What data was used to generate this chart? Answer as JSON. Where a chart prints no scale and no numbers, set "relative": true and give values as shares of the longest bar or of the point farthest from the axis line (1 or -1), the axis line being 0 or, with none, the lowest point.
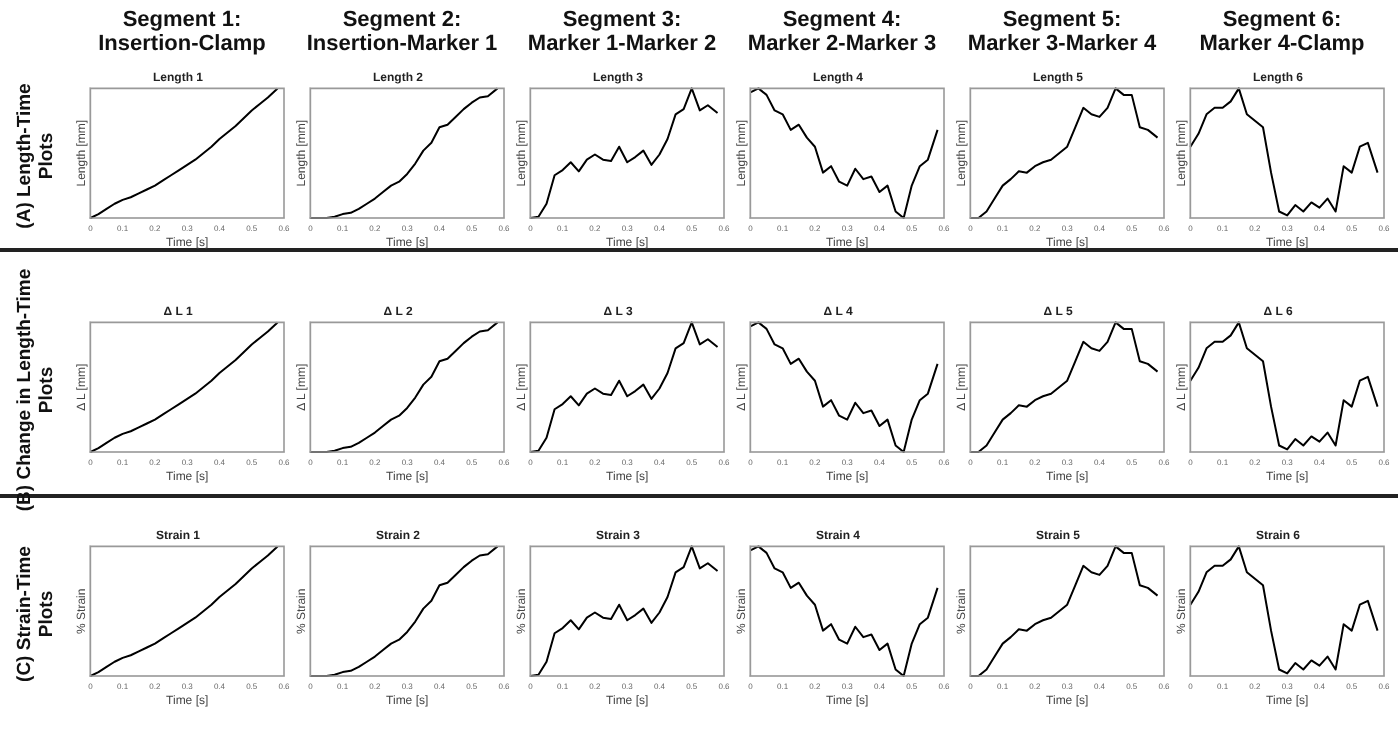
{
  "chart_data": [
    {
      "type": "line",
      "subtitle": "Segment 1:\nInsertion-Clamp",
      "annotations": [
        "(A) Length-Time\nPlots"
      ],
      "title": "Length 1",
      "xlabel": "Time [s]",
      "ylabel": "Length [mm]",
      "relative": true,
      "xlim": [
        0,
        0.6
      ],
      "xticks": [
        0,
        0.1,
        0.2,
        0.3,
        0.4,
        0.5,
        0.6
      ],
      "series": [
        {
          "color": "#000000",
          "x": [
            0,
            0.025,
            0.05,
            0.075,
            0.1,
            0.125,
            0.15,
            0.175,
            0.2,
            0.225,
            0.25,
            0.275,
            0.3,
            0.325,
            0.35,
            0.375,
            0.4,
            0.425,
            0.45,
            0.475,
            0.5,
            0.525,
            0.55,
            0.58
          ],
          "values": [
            0,
            0.03,
            0.07,
            0.11,
            0.14,
            0.16,
            0.19,
            0.22,
            0.25,
            0.29,
            0.33,
            0.37,
            0.41,
            0.45,
            0.5,
            0.55,
            0.61,
            0.66,
            0.71,
            0.77,
            0.83,
            0.88,
            0.93,
            1
          ]
        }
      ]
    },
    {
      "type": "line",
      "subtitle": "Segment 2:\nInsertion-Marker 1",
      "title": "Length 2",
      "xlabel": "Time [s]",
      "ylabel": "Length [mm]",
      "relative": true,
      "xlim": [
        0,
        0.6
      ],
      "xticks": [
        0,
        0.1,
        0.2,
        0.3,
        0.4,
        0.5,
        0.6
      ],
      "series": [
        {
          "color": "#000000",
          "x": [
            0,
            0.025,
            0.05,
            0.075,
            0.1,
            0.125,
            0.15,
            0.175,
            0.2,
            0.225,
            0.25,
            0.275,
            0.3,
            0.325,
            0.35,
            0.375,
            0.4,
            0.425,
            0.45,
            0.475,
            0.5,
            0.525,
            0.55,
            0.58
          ],
          "values": [
            0,
            0,
            0,
            0.01,
            0.03,
            0.04,
            0.07,
            0.11,
            0.15,
            0.2,
            0.25,
            0.28,
            0.34,
            0.42,
            0.52,
            0.58,
            0.7,
            0.72,
            0.78,
            0.84,
            0.89,
            0.93,
            0.94,
            1
          ]
        }
      ]
    },
    {
      "type": "line",
      "subtitle": "Segment 3:\nMarker 1-Marker 2",
      "title": "Length 3",
      "xlabel": "Time [s]",
      "ylabel": "Length [mm]",
      "relative": true,
      "xlim": [
        0,
        0.6
      ],
      "xticks": [
        0,
        0.1,
        0.2,
        0.3,
        0.4,
        0.5,
        0.6
      ],
      "series": [
        {
          "color": "#000000",
          "x": [
            0,
            0.025,
            0.05,
            0.075,
            0.1,
            0.125,
            0.15,
            0.175,
            0.2,
            0.225,
            0.25,
            0.275,
            0.3,
            0.325,
            0.35,
            0.375,
            0.4,
            0.425,
            0.45,
            0.475,
            0.5,
            0.525,
            0.55,
            0.58
          ],
          "values": [
            0,
            0.01,
            0.11,
            0.33,
            0.37,
            0.43,
            0.36,
            0.45,
            0.49,
            0.45,
            0.44,
            0.55,
            0.43,
            0.47,
            0.52,
            0.41,
            0.49,
            0.61,
            0.8,
            0.84,
            1,
            0.83,
            0.87,
            0.81
          ]
        }
      ]
    },
    {
      "type": "line",
      "subtitle": "Segment 4:\nMarker 2-Marker 3",
      "title": "Length 4",
      "xlabel": "Time [s]",
      "ylabel": "Length [mm]",
      "relative": true,
      "xlim": [
        0,
        0.6
      ],
      "xticks": [
        0,
        0.1,
        0.2,
        0.3,
        0.4,
        0.5,
        0.6
      ],
      "series": [
        {
          "color": "#000000",
          "x": [
            0,
            0.025,
            0.05,
            0.075,
            0.1,
            0.125,
            0.15,
            0.175,
            0.2,
            0.225,
            0.25,
            0.275,
            0.3,
            0.325,
            0.35,
            0.375,
            0.4,
            0.425,
            0.45,
            0.475,
            0.5,
            0.525,
            0.55,
            0.58
          ],
          "values": [
            0.97,
            1,
            0.95,
            0.83,
            0.8,
            0.68,
            0.72,
            0.62,
            0.55,
            0.35,
            0.4,
            0.28,
            0.25,
            0.38,
            0.3,
            0.32,
            0.2,
            0.25,
            0.05,
            0,
            0.25,
            0.4,
            0.45,
            0.68
          ]
        }
      ]
    },
    {
      "type": "line",
      "subtitle": "Segment 5:\nMarker 3-Marker 4",
      "title": "Length 5",
      "xlabel": "Time [s]",
      "ylabel": "Length [mm]",
      "relative": true,
      "xlim": [
        0,
        0.6
      ],
      "xticks": [
        0,
        0.1,
        0.2,
        0.3,
        0.4,
        0.5,
        0.6
      ],
      "series": [
        {
          "color": "#000000",
          "x": [
            0,
            0.025,
            0.05,
            0.075,
            0.1,
            0.125,
            0.15,
            0.175,
            0.2,
            0.225,
            0.25,
            0.275,
            0.3,
            0.325,
            0.35,
            0.375,
            0.4,
            0.425,
            0.45,
            0.475,
            0.5,
            0.525,
            0.55,
            0.58
          ],
          "values": [
            0,
            0,
            0.05,
            0.15,
            0.25,
            0.3,
            0.36,
            0.35,
            0.4,
            0.43,
            0.45,
            0.5,
            0.55,
            0.7,
            0.85,
            0.8,
            0.78,
            0.85,
            1,
            0.95,
            0.95,
            0.7,
            0.68,
            0.62
          ]
        }
      ]
    },
    {
      "type": "line",
      "subtitle": "Segment 6:\nMarker 4-Clamp",
      "title": "Length 6",
      "xlabel": "Time [s]",
      "ylabel": "Length [mm]",
      "relative": true,
      "xlim": [
        0,
        0.6
      ],
      "xticks": [
        0,
        0.1,
        0.2,
        0.3,
        0.4,
        0.5,
        0.6
      ],
      "series": [
        {
          "color": "#000000",
          "x": [
            0,
            0.025,
            0.05,
            0.075,
            0.1,
            0.125,
            0.15,
            0.175,
            0.2,
            0.225,
            0.25,
            0.275,
            0.3,
            0.325,
            0.35,
            0.375,
            0.4,
            0.425,
            0.45,
            0.475,
            0.5,
            0.525,
            0.55,
            0.58
          ],
          "values": [
            0.55,
            0.65,
            0.8,
            0.85,
            0.85,
            0.9,
            1,
            0.8,
            0.75,
            0.7,
            0.35,
            0.05,
            0.02,
            0.1,
            0.05,
            0.12,
            0.08,
            0.15,
            0.05,
            0.4,
            0.35,
            0.55,
            0.58,
            0.35
          ]
        }
      ]
    },
    {
      "type": "line",
      "annotations": [
        "(B) Change in Length-Time\nPlots"
      ],
      "title": "Δ L 1",
      "xlabel": "Time [s]",
      "ylabel": "Δ L [mm]",
      "relative": true,
      "xlim": [
        0,
        0.6
      ],
      "xticks": [
        0,
        0.1,
        0.2,
        0.3,
        0.4,
        0.5,
        0.6
      ],
      "series": [
        {
          "color": "#000000",
          "x": [
            0,
            0.025,
            0.05,
            0.075,
            0.1,
            0.125,
            0.15,
            0.175,
            0.2,
            0.225,
            0.25,
            0.275,
            0.3,
            0.325,
            0.35,
            0.375,
            0.4,
            0.425,
            0.45,
            0.475,
            0.5,
            0.525,
            0.55,
            0.58
          ],
          "values": [
            0,
            0.03,
            0.07,
            0.11,
            0.14,
            0.16,
            0.19,
            0.22,
            0.25,
            0.29,
            0.33,
            0.37,
            0.41,
            0.45,
            0.5,
            0.55,
            0.61,
            0.66,
            0.71,
            0.77,
            0.83,
            0.88,
            0.93,
            1
          ]
        }
      ]
    },
    {
      "type": "line",
      "title": "Δ L 2",
      "xlabel": "Time [s]",
      "ylabel": "Δ L [mm]",
      "relative": true,
      "xlim": [
        0,
        0.6
      ],
      "xticks": [
        0,
        0.1,
        0.2,
        0.3,
        0.4,
        0.5,
        0.6
      ],
      "series": [
        {
          "color": "#000000",
          "x": [
            0,
            0.025,
            0.05,
            0.075,
            0.1,
            0.125,
            0.15,
            0.175,
            0.2,
            0.225,
            0.25,
            0.275,
            0.3,
            0.325,
            0.35,
            0.375,
            0.4,
            0.425,
            0.45,
            0.475,
            0.5,
            0.525,
            0.55,
            0.58
          ],
          "values": [
            0,
            0,
            0,
            0.01,
            0.03,
            0.04,
            0.07,
            0.11,
            0.15,
            0.2,
            0.25,
            0.28,
            0.34,
            0.42,
            0.52,
            0.58,
            0.7,
            0.72,
            0.78,
            0.84,
            0.89,
            0.93,
            0.94,
            1
          ]
        }
      ]
    },
    {
      "type": "line",
      "title": "Δ L 3",
      "xlabel": "Time [s]",
      "ylabel": "Δ L [mm]",
      "relative": true,
      "xlim": [
        0,
        0.6
      ],
      "xticks": [
        0,
        0.1,
        0.2,
        0.3,
        0.4,
        0.5,
        0.6
      ],
      "series": [
        {
          "color": "#000000",
          "x": [
            0,
            0.025,
            0.05,
            0.075,
            0.1,
            0.125,
            0.15,
            0.175,
            0.2,
            0.225,
            0.25,
            0.275,
            0.3,
            0.325,
            0.35,
            0.375,
            0.4,
            0.425,
            0.45,
            0.475,
            0.5,
            0.525,
            0.55,
            0.58
          ],
          "values": [
            0,
            0.01,
            0.11,
            0.33,
            0.37,
            0.43,
            0.36,
            0.45,
            0.49,
            0.45,
            0.44,
            0.55,
            0.43,
            0.47,
            0.52,
            0.41,
            0.49,
            0.61,
            0.8,
            0.84,
            1,
            0.83,
            0.87,
            0.81
          ]
        }
      ]
    },
    {
      "type": "line",
      "title": "Δ L 4",
      "xlabel": "Time [s]",
      "ylabel": "Δ L [mm]",
      "relative": true,
      "xlim": [
        0,
        0.6
      ],
      "xticks": [
        0,
        0.1,
        0.2,
        0.3,
        0.4,
        0.5,
        0.6
      ],
      "series": [
        {
          "color": "#000000",
          "x": [
            0,
            0.025,
            0.05,
            0.075,
            0.1,
            0.125,
            0.15,
            0.175,
            0.2,
            0.225,
            0.25,
            0.275,
            0.3,
            0.325,
            0.35,
            0.375,
            0.4,
            0.425,
            0.45,
            0.475,
            0.5,
            0.525,
            0.55,
            0.58
          ],
          "values": [
            0.97,
            1,
            0.95,
            0.83,
            0.8,
            0.68,
            0.72,
            0.62,
            0.55,
            0.35,
            0.4,
            0.28,
            0.25,
            0.38,
            0.3,
            0.32,
            0.2,
            0.25,
            0.05,
            0,
            0.25,
            0.4,
            0.45,
            0.68
          ]
        }
      ]
    },
    {
      "type": "line",
      "title": "Δ L 5",
      "xlabel": "Time [s]",
      "ylabel": "Δ L [mm]",
      "relative": true,
      "xlim": [
        0,
        0.6
      ],
      "xticks": [
        0,
        0.1,
        0.2,
        0.3,
        0.4,
        0.5,
        0.6
      ],
      "series": [
        {
          "color": "#000000",
          "x": [
            0,
            0.025,
            0.05,
            0.075,
            0.1,
            0.125,
            0.15,
            0.175,
            0.2,
            0.225,
            0.25,
            0.275,
            0.3,
            0.325,
            0.35,
            0.375,
            0.4,
            0.425,
            0.45,
            0.475,
            0.5,
            0.525,
            0.55,
            0.58
          ],
          "values": [
            0,
            0,
            0.05,
            0.15,
            0.25,
            0.3,
            0.36,
            0.35,
            0.4,
            0.43,
            0.45,
            0.5,
            0.55,
            0.7,
            0.85,
            0.8,
            0.78,
            0.85,
            1,
            0.95,
            0.95,
            0.7,
            0.68,
            0.62
          ]
        }
      ]
    },
    {
      "type": "line",
      "title": "Δ L 6",
      "xlabel": "Time [s]",
      "ylabel": "Δ L [mm]",
      "relative": true,
      "xlim": [
        0,
        0.6
      ],
      "xticks": [
        0,
        0.1,
        0.2,
        0.3,
        0.4,
        0.5,
        0.6
      ],
      "series": [
        {
          "color": "#000000",
          "x": [
            0,
            0.025,
            0.05,
            0.075,
            0.1,
            0.125,
            0.15,
            0.175,
            0.2,
            0.225,
            0.25,
            0.275,
            0.3,
            0.325,
            0.35,
            0.375,
            0.4,
            0.425,
            0.45,
            0.475,
            0.5,
            0.525,
            0.55,
            0.58
          ],
          "values": [
            0.55,
            0.65,
            0.8,
            0.85,
            0.85,
            0.9,
            1,
            0.8,
            0.75,
            0.7,
            0.35,
            0.05,
            0.02,
            0.1,
            0.05,
            0.12,
            0.08,
            0.15,
            0.05,
            0.4,
            0.35,
            0.55,
            0.58,
            0.35
          ]
        }
      ]
    },
    {
      "type": "line",
      "annotations": [
        "(C) Strain-Time\nPlots"
      ],
      "title": "Strain 1",
      "xlabel": "Time [s]",
      "ylabel": "% Strain",
      "relative": true,
      "xlim": [
        0,
        0.6
      ],
      "xticks": [
        0,
        0.1,
        0.2,
        0.3,
        0.4,
        0.5,
        0.6
      ],
      "series": [
        {
          "color": "#000000",
          "x": [
            0,
            0.025,
            0.05,
            0.075,
            0.1,
            0.125,
            0.15,
            0.175,
            0.2,
            0.225,
            0.25,
            0.275,
            0.3,
            0.325,
            0.35,
            0.375,
            0.4,
            0.425,
            0.45,
            0.475,
            0.5,
            0.525,
            0.55,
            0.58
          ],
          "values": [
            0,
            0.03,
            0.07,
            0.11,
            0.14,
            0.16,
            0.19,
            0.22,
            0.25,
            0.29,
            0.33,
            0.37,
            0.41,
            0.45,
            0.5,
            0.55,
            0.61,
            0.66,
            0.71,
            0.77,
            0.83,
            0.88,
            0.93,
            1
          ]
        }
      ]
    },
    {
      "type": "line",
      "title": "Strain 2",
      "xlabel": "Time [s]",
      "ylabel": "% Strain",
      "relative": true,
      "xlim": [
        0,
        0.6
      ],
      "xticks": [
        0,
        0.1,
        0.2,
        0.3,
        0.4,
        0.5,
        0.6
      ],
      "series": [
        {
          "color": "#000000",
          "x": [
            0,
            0.025,
            0.05,
            0.075,
            0.1,
            0.125,
            0.15,
            0.175,
            0.2,
            0.225,
            0.25,
            0.275,
            0.3,
            0.325,
            0.35,
            0.375,
            0.4,
            0.425,
            0.45,
            0.475,
            0.5,
            0.525,
            0.55,
            0.58
          ],
          "values": [
            0,
            0,
            0,
            0.01,
            0.03,
            0.04,
            0.07,
            0.11,
            0.15,
            0.2,
            0.25,
            0.28,
            0.34,
            0.42,
            0.52,
            0.58,
            0.7,
            0.72,
            0.78,
            0.84,
            0.89,
            0.93,
            0.94,
            1
          ]
        }
      ]
    },
    {
      "type": "line",
      "title": "Strain 3",
      "xlabel": "Time [s]",
      "ylabel": "% Strain",
      "relative": true,
      "xlim": [
        0,
        0.6
      ],
      "xticks": [
        0,
        0.1,
        0.2,
        0.3,
        0.4,
        0.5,
        0.6
      ],
      "series": [
        {
          "color": "#000000",
          "x": [
            0,
            0.025,
            0.05,
            0.075,
            0.1,
            0.125,
            0.15,
            0.175,
            0.2,
            0.225,
            0.25,
            0.275,
            0.3,
            0.325,
            0.35,
            0.375,
            0.4,
            0.425,
            0.45,
            0.475,
            0.5,
            0.525,
            0.55,
            0.58
          ],
          "values": [
            0,
            0.01,
            0.11,
            0.33,
            0.37,
            0.43,
            0.36,
            0.45,
            0.49,
            0.45,
            0.44,
            0.55,
            0.43,
            0.47,
            0.52,
            0.41,
            0.49,
            0.61,
            0.8,
            0.84,
            1,
            0.83,
            0.87,
            0.81
          ]
        }
      ]
    },
    {
      "type": "line",
      "title": "Strain 4",
      "xlabel": "Time [s]",
      "ylabel": "% Strain",
      "relative": true,
      "xlim": [
        0,
        0.6
      ],
      "xticks": [
        0,
        0.1,
        0.2,
        0.3,
        0.4,
        0.5,
        0.6
      ],
      "series": [
        {
          "color": "#000000",
          "x": [
            0,
            0.025,
            0.05,
            0.075,
            0.1,
            0.125,
            0.15,
            0.175,
            0.2,
            0.225,
            0.25,
            0.275,
            0.3,
            0.325,
            0.35,
            0.375,
            0.4,
            0.425,
            0.45,
            0.475,
            0.5,
            0.525,
            0.55,
            0.58
          ],
          "values": [
            0.97,
            1,
            0.95,
            0.83,
            0.8,
            0.68,
            0.72,
            0.62,
            0.55,
            0.35,
            0.4,
            0.28,
            0.25,
            0.38,
            0.3,
            0.32,
            0.2,
            0.25,
            0.05,
            0,
            0.25,
            0.4,
            0.45,
            0.68
          ]
        }
      ]
    },
    {
      "type": "line",
      "title": "Strain 5",
      "xlabel": "Time [s]",
      "ylabel": "% Strain",
      "relative": true,
      "xlim": [
        0,
        0.6
      ],
      "xticks": [
        0,
        0.1,
        0.2,
        0.3,
        0.4,
        0.5,
        0.6
      ],
      "series": [
        {
          "color": "#000000",
          "x": [
            0,
            0.025,
            0.05,
            0.075,
            0.1,
            0.125,
            0.15,
            0.175,
            0.2,
            0.225,
            0.25,
            0.275,
            0.3,
            0.325,
            0.35,
            0.375,
            0.4,
            0.425,
            0.45,
            0.475,
            0.5,
            0.525,
            0.55,
            0.58
          ],
          "values": [
            0,
            0,
            0.05,
            0.15,
            0.25,
            0.3,
            0.36,
            0.35,
            0.4,
            0.43,
            0.45,
            0.5,
            0.55,
            0.7,
            0.85,
            0.8,
            0.78,
            0.85,
            1,
            0.95,
            0.95,
            0.7,
            0.68,
            0.62
          ]
        }
      ]
    },
    {
      "type": "line",
      "title": "Strain 6",
      "xlabel": "Time [s]",
      "ylabel": "% Strain",
      "relative": true,
      "xlim": [
        0,
        0.6
      ],
      "xticks": [
        0,
        0.1,
        0.2,
        0.3,
        0.4,
        0.5,
        0.6
      ],
      "series": [
        {
          "color": "#000000",
          "x": [
            0,
            0.025,
            0.05,
            0.075,
            0.1,
            0.125,
            0.15,
            0.175,
            0.2,
            0.225,
            0.25,
            0.275,
            0.3,
            0.325,
            0.35,
            0.375,
            0.4,
            0.425,
            0.45,
            0.475,
            0.5,
            0.525,
            0.55,
            0.58
          ],
          "values": [
            0.55,
            0.65,
            0.8,
            0.85,
            0.85,
            0.9,
            1,
            0.8,
            0.75,
            0.7,
            0.35,
            0.05,
            0.02,
            0.1,
            0.05,
            0.12,
            0.08,
            0.15,
            0.05,
            0.4,
            0.35,
            0.55,
            0.58,
            0.35
          ]
        }
      ]
    }
  ]
}
